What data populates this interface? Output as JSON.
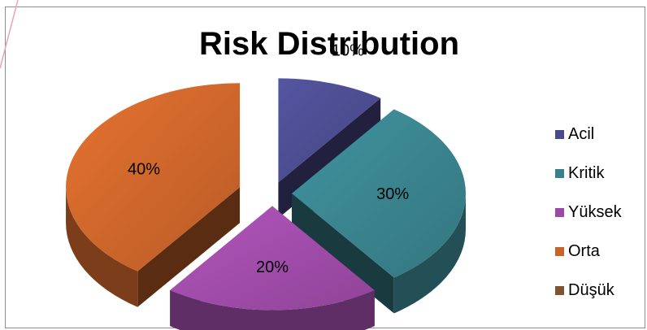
{
  "chart_data": {
    "type": "pie",
    "title": "Risk Distribution",
    "categories": [
      "Acil",
      "Kritik",
      "Yüksek",
      "Orta",
      "Düşük"
    ],
    "values": [
      10,
      30,
      20,
      40,
      0
    ],
    "data_labels": [
      "10%",
      "30%",
      "20%",
      "40%",
      ""
    ],
    "colors": [
      "#4a4a8c",
      "#38808a",
      "#9b4aa4",
      "#c8632a",
      "#7f5230"
    ],
    "exploded": true,
    "three_d": true,
    "legend_position": "right"
  }
}
